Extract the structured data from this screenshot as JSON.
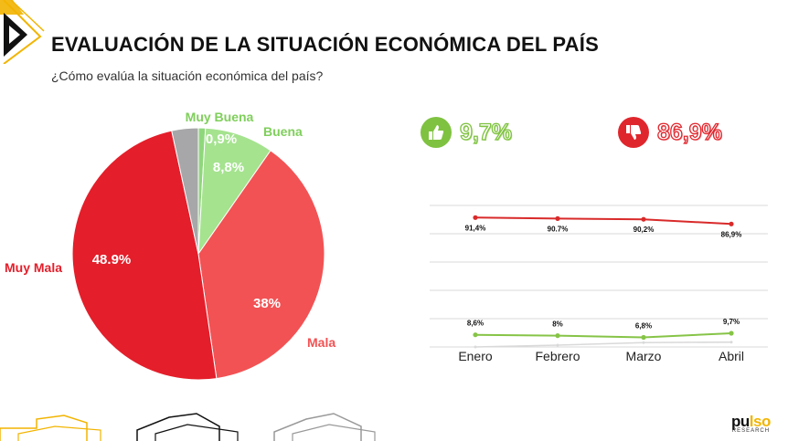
{
  "header": {
    "title": "EVALUACIÓN DE LA SITUACIÓN ECONÓMICA DEL PAÍS",
    "subtitle": "¿Cómo evalúa la situación económica del país?"
  },
  "kpis": {
    "positive": {
      "value": "9,7%",
      "icon": "thumbs-up-icon",
      "color": "#7fc241"
    },
    "negative": {
      "value": "86,9%",
      "icon": "thumbs-down-icon",
      "color": "#e0262d"
    }
  },
  "brand": {
    "name_pre": "pu",
    "name_post": "lso",
    "tagline": "RESEARCH",
    "accent": "#f2b400"
  },
  "chart_data": [
    {
      "type": "pie",
      "categories": [
        "Muy Buena",
        "Buena",
        "Mala",
        "Muy Mala",
        ""
      ],
      "values": [
        0.9,
        8.8,
        38,
        48.9,
        3.4
      ],
      "value_labels": [
        "0,9%",
        "8,8%",
        "38%",
        "48.9%",
        ""
      ],
      "colors": [
        "#8fd77b",
        "#a5e38f",
        "#f25254",
        "#e41e2a",
        "#a7a7a9"
      ],
      "label_colors": [
        "#7fcf5b",
        "#7fcf5b",
        "#f25254",
        "#e41e2a",
        ""
      ]
    },
    {
      "type": "line",
      "categories": [
        "Enero",
        "Febrero",
        "Marzo",
        "Abril"
      ],
      "series": [
        {
          "values": [
            91.4,
            90.7,
            90.2,
            86.9
          ],
          "labels": [
            "91,4%",
            "90.7%",
            "90,2%",
            "86,9%"
          ],
          "color": "#d92a2a"
        },
        {
          "values": [
            8.6,
            8,
            6.8,
            9.7
          ],
          "labels": [
            "8,6%",
            "8%",
            "6,8%",
            "9,7%"
          ],
          "color": "#86c447"
        },
        {
          "values": [
            0,
            1.3,
            3,
            3.4
          ],
          "labels": [],
          "color": "#d9d9d9"
        }
      ],
      "ylim": [
        0,
        100
      ],
      "grid": true
    }
  ]
}
